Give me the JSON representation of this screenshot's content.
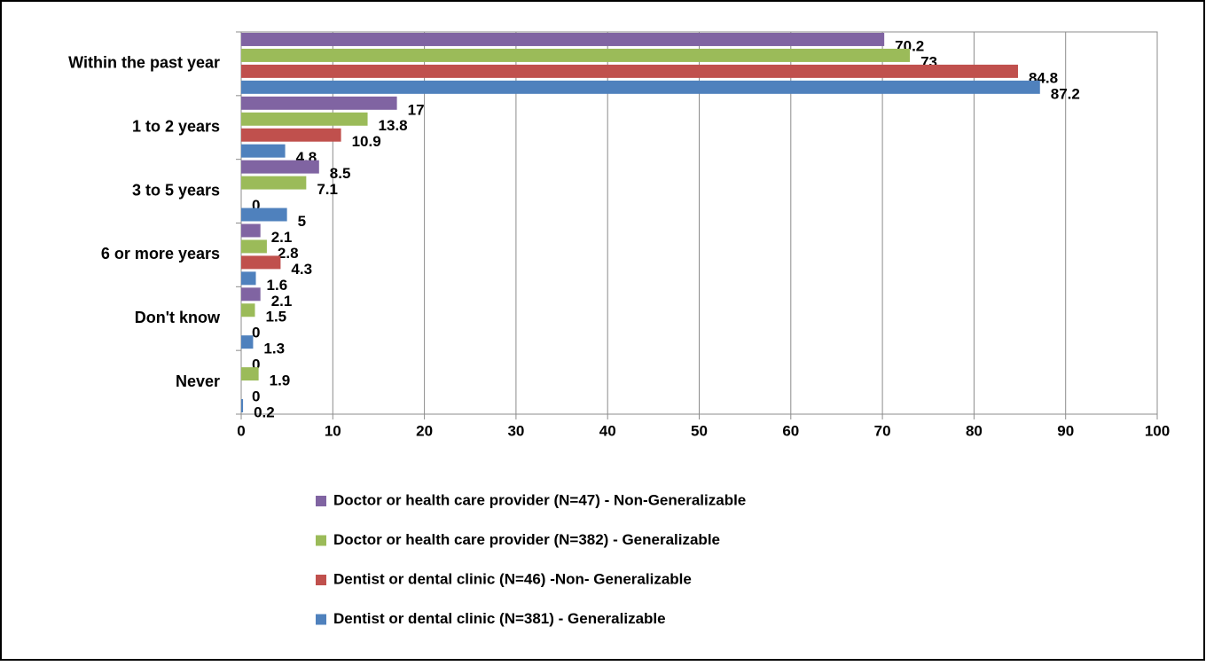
{
  "chart_data": {
    "type": "bar",
    "orientation": "horizontal",
    "categories": [
      "Within the past year",
      "1 to 2 years",
      "3 to 5 years",
      "6 or more years",
      "Don't know",
      "Never"
    ],
    "series": [
      {
        "name": "Doctor or health care provider (N=47) - Non-Generalizable",
        "color": "#8064a2",
        "values": [
          70.2,
          17,
          8.5,
          2.1,
          2.1,
          0
        ]
      },
      {
        "name": "Doctor or health care provider (N=382) - Generalizable",
        "color": "#9bbb59",
        "values": [
          73,
          13.8,
          7.1,
          2.8,
          1.5,
          1.9
        ]
      },
      {
        "name": "Dentist or dental clinic (N=46) -Non- Generalizable",
        "color": "#c0504d",
        "values": [
          84.8,
          10.9,
          0,
          4.3,
          0,
          0
        ]
      },
      {
        "name": "Dentist or dental clinic (N=381) - Generalizable",
        "color": "#4f81bd",
        "values": [
          87.2,
          4.8,
          5,
          1.6,
          1.3,
          0.2
        ]
      }
    ],
    "xlim": [
      0,
      100
    ],
    "xticks": [
      0,
      10,
      20,
      30,
      40,
      50,
      60,
      70,
      80,
      90,
      100
    ],
    "grid": true,
    "legend": "bottom"
  }
}
